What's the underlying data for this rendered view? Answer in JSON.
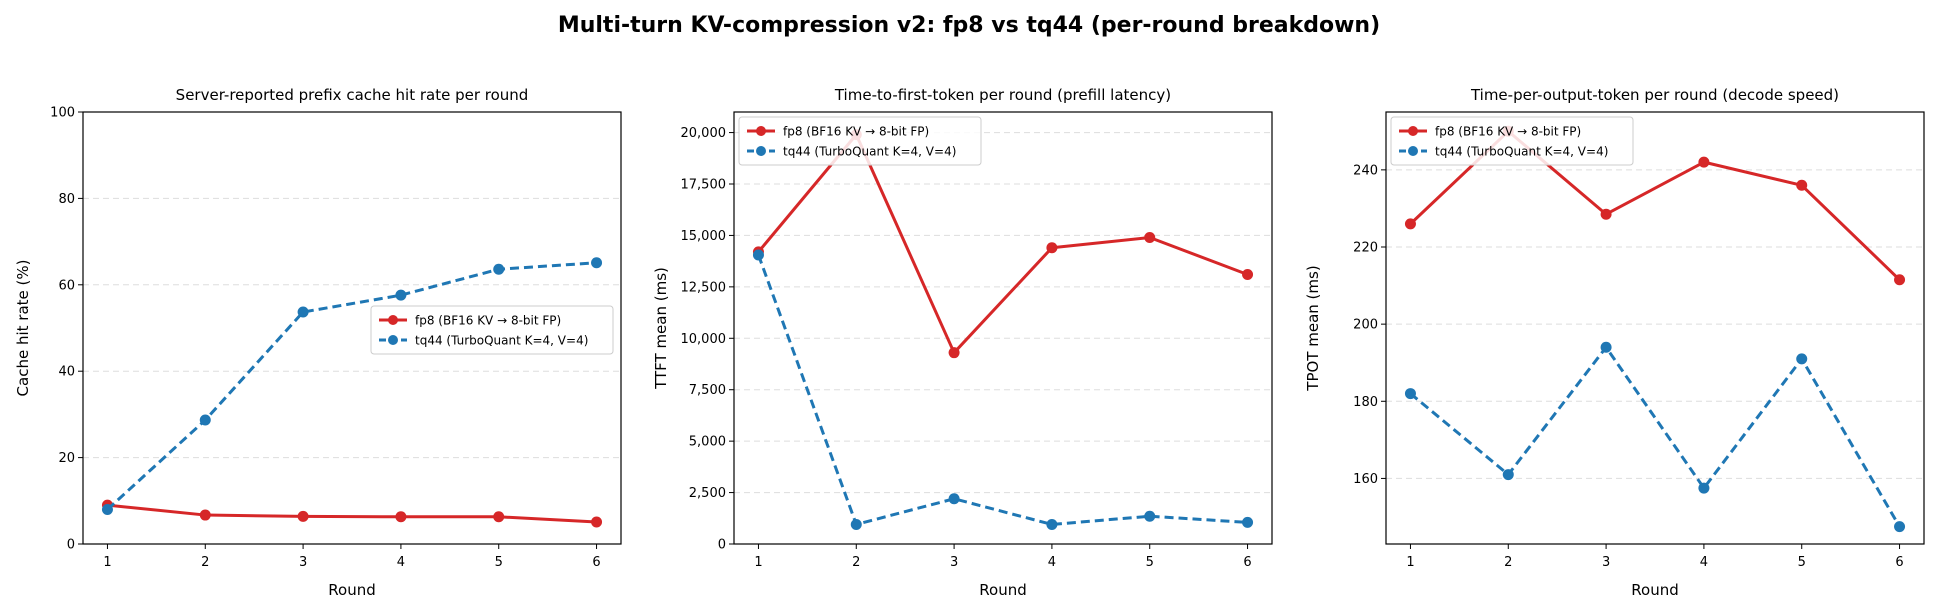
{
  "figure_title": "Multi-turn KV-compression v2: fp8 vs tq44 (per-round breakdown)",
  "colors": {
    "fp8": "#d62728",
    "tq44": "#1f77b4",
    "grid": "#dddddd"
  },
  "chart_data": [
    {
      "type": "line",
      "title": "Server-reported prefix cache hit rate per round",
      "xlabel": "Round",
      "ylabel": "Cache hit rate (%)",
      "x": [
        1,
        2,
        3,
        4,
        5,
        6
      ],
      "xlim": [
        0.75,
        6.25
      ],
      "ylim": [
        0,
        100
      ],
      "yticks": [
        0,
        20,
        40,
        60,
        80,
        100
      ],
      "ytick_labels": [
        "0",
        "20",
        "40",
        "60",
        "80",
        "100"
      ],
      "grid": "y, dashed",
      "legend_position": "center-right",
      "series": [
        {
          "name": "fp8 (BF16 KV → 8-bit FP)",
          "key": "fp8",
          "style": "solid",
          "values": [
            9.0,
            6.7,
            6.4,
            6.3,
            6.3,
            5.1
          ]
        },
        {
          "name": "tq44 (TurboQuant K=4, V=4)",
          "key": "tq44",
          "style": "dashed",
          "values": [
            8.0,
            28.7,
            53.7,
            57.6,
            63.6,
            65.1
          ]
        }
      ]
    },
    {
      "type": "line",
      "title": "Time-to-first-token per round (prefill latency)",
      "xlabel": "Round",
      "ylabel": "TTFT mean (ms)",
      "x": [
        1,
        2,
        3,
        4,
        5,
        6
      ],
      "xlim": [
        0.75,
        6.25
      ],
      "ylim": [
        0,
        21000
      ],
      "yticks": [
        0,
        2500,
        5000,
        7500,
        10000,
        12500,
        15000,
        17500,
        20000
      ],
      "ytick_labels": [
        "0",
        "2,500",
        "5,000",
        "7,500",
        "10,000",
        "12,500",
        "15,000",
        "17,500",
        "20,000"
      ],
      "grid": "y, dashed",
      "legend_position": "top-left",
      "series": [
        {
          "name": "fp8 (BF16 KV → 8-bit FP)",
          "key": "fp8",
          "style": "solid",
          "values": [
            14200,
            19900,
            9300,
            14400,
            14900,
            13100
          ]
        },
        {
          "name": "tq44 (TurboQuant K=4, V=4)",
          "key": "tq44",
          "style": "dashed",
          "values": [
            14050,
            950,
            2200,
            950,
            1350,
            1050
          ]
        }
      ]
    },
    {
      "type": "line",
      "title": "Time-per-output-token per round (decode speed)",
      "xlabel": "Round",
      "ylabel": "TPOT mean (ms)",
      "x": [
        1,
        2,
        3,
        4,
        5,
        6
      ],
      "xlim": [
        0.75,
        6.25
      ],
      "ylim": [
        143,
        255
      ],
      "yticks": [
        160,
        180,
        200,
        220,
        240
      ],
      "ytick_labels": [
        "160",
        "180",
        "200",
        "220",
        "240"
      ],
      "grid": "y, dashed",
      "legend_position": "top-left",
      "series": [
        {
          "name": "fp8 (BF16 KV → 8-bit FP)",
          "key": "fp8",
          "style": "solid",
          "values": [
            226,
            250,
            228.5,
            242,
            236,
            211.5
          ]
        },
        {
          "name": "tq44 (TurboQuant K=4, V=4)",
          "key": "tq44",
          "style": "dashed",
          "values": [
            182,
            161,
            194,
            157.5,
            191,
            147.5
          ]
        }
      ]
    }
  ]
}
